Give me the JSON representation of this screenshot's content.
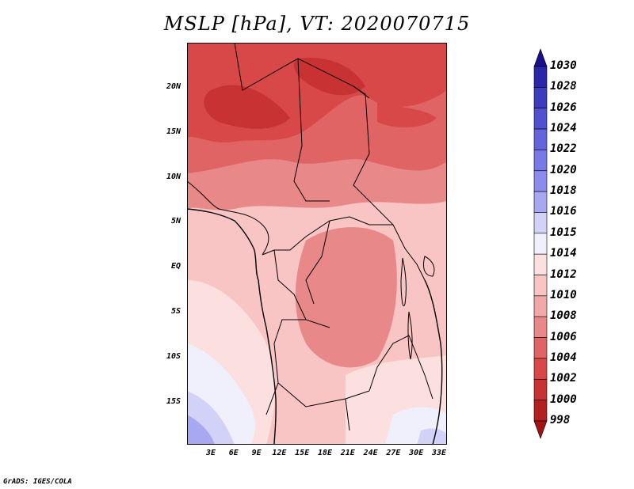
{
  "title": "MSLP [hPa], VT: 2020070715",
  "footer": "GrADS: IGES/COLA",
  "lat_labels": [
    "20N",
    "15N",
    "10N",
    "5N",
    "EQ",
    "5S",
    "10S",
    "15S"
  ],
  "lon_labels": [
    "3E",
    "6E",
    "9E",
    "12E",
    "15E",
    "18E",
    "21E",
    "24E",
    "27E",
    "30E",
    "33E"
  ],
  "colorbar": {
    "levels": [
      "1030",
      "1028",
      "1026",
      "1024",
      "1022",
      "1020",
      "1018",
      "1016",
      "1015",
      "1014",
      "1012",
      "1010",
      "1008",
      "1006",
      "1004",
      "1002",
      "1000",
      "998"
    ],
    "colors": [
      "#1a0f8c",
      "#2a28a8",
      "#3c3cbe",
      "#5050d0",
      "#6464dc",
      "#7878e6",
      "#8c8cec",
      "#a8a8f2",
      "#d2d2f8",
      "#f0f0fc",
      "#fce0e0",
      "#f8c4c4",
      "#f2a8a8",
      "#e88888",
      "#e06464",
      "#d84848",
      "#c83232",
      "#b42020",
      "#a01414"
    ]
  },
  "map": {
    "variable": "Mean sea level pressure (hPa)",
    "valid_time": "2020070715",
    "region": "Central & southern Africa, 0–35E, 20S–25N"
  }
}
